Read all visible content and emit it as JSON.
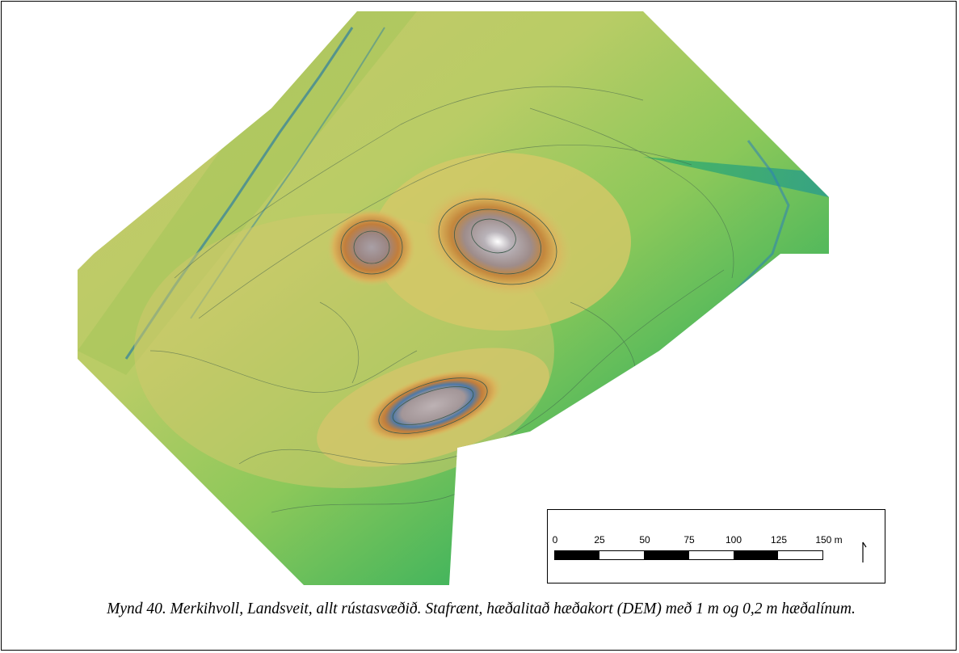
{
  "figure": {
    "caption": "Mynd 40. Merkihvoll, Landsveit, allt rústasvæðið. Stafrænt, hæðalitað hæðakort (DEM) með 1 m og 0,2 m hæðalínum."
  },
  "map": {
    "type": "hillshade-dem-contour",
    "colors": {
      "low": "#2e9e8a",
      "mid_low": "#4cbc55",
      "mid": "#9ccc58",
      "mid_high": "#d7c96a",
      "high": "#c98a3c",
      "peak": "#a7a3a5",
      "summit": "#ffffff",
      "contour": "#3c5a4a"
    },
    "features": [
      {
        "name": "north-mound"
      },
      {
        "name": "small-west-mound"
      },
      {
        "name": "south-elongated-mound"
      },
      {
        "name": "ridge-terrace-northwest"
      },
      {
        "name": "lowland-east"
      }
    ]
  },
  "scale_bar": {
    "labels": [
      "0",
      "25",
      "50",
      "75",
      "100",
      "125",
      "150 m"
    ],
    "segments": 6,
    "north_arrow": "north-arrow-icon"
  }
}
